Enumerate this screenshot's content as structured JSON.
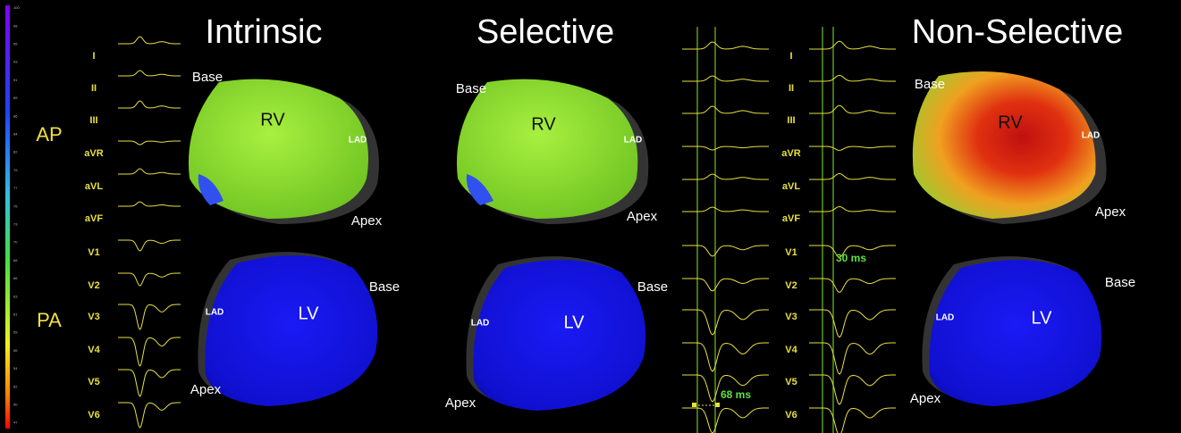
{
  "titles": [
    "Intrinsic",
    "Selective",
    "Non-Selective"
  ],
  "views": [
    "AP",
    "PA"
  ],
  "leads_left": [
    "I",
    "II",
    "III",
    "aVR",
    "aVL",
    "aVF",
    "V1",
    "V2",
    "V3",
    "V4",
    "V5",
    "V6"
  ],
  "leads_right": [
    "I",
    "II",
    "III",
    "aVR",
    "aVL",
    "aVF",
    "V1",
    "V2",
    "V3",
    "V4",
    "V5",
    "V6"
  ],
  "panels": [
    {
      "ap": {
        "base": "Base",
        "chamber": "RV",
        "lad": "LAD",
        "apex": "Apex"
      },
      "pa": {
        "lad": "LAD",
        "chamber": "LV",
        "base": "Base",
        "apex": "Apex"
      }
    },
    {
      "ap": {
        "base": "Base",
        "chamber": "RV",
        "lad": "LAD",
        "apex": "Apex"
      },
      "pa": {
        "lad": "LAD",
        "chamber": "LV",
        "base": "Base",
        "apex": "Apex"
      }
    },
    {
      "ap": {
        "base": "Base",
        "chamber": "RV",
        "lad": "LAD",
        "apex": "Apex"
      },
      "pa": {
        "lad": "LAD",
        "chamber": "LV",
        "base": "Base",
        "apex": "Apex"
      }
    }
  ],
  "intervals": [
    "68 ms",
    "30 ms"
  ],
  "color_scale": [
    "100",
    "98",
    "95",
    "93",
    "91",
    "89",
    "86",
    "84",
    "82",
    "79",
    "77",
    "75",
    "73",
    "70",
    "68",
    "66",
    "63",
    "61",
    "59",
    "56",
    "54",
    "52",
    "50",
    "47"
  ]
}
